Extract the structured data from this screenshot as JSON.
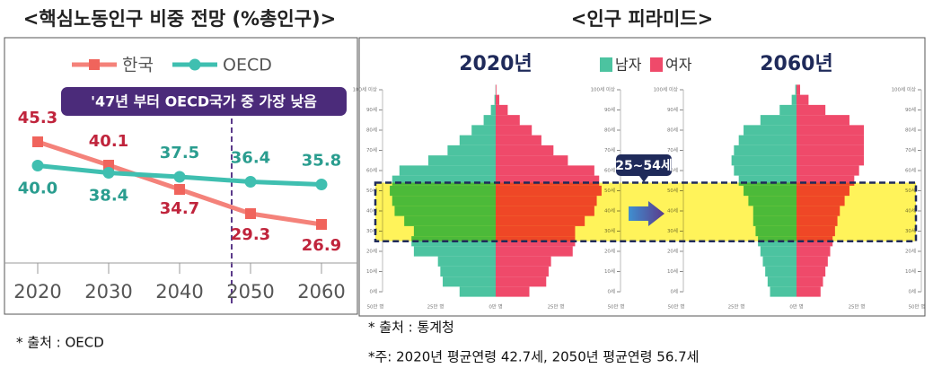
{
  "chart_data": [
    {
      "type": "line",
      "title": "<핵심노동인구 비중 전망 (%총인구)>",
      "annotation": "'47년 부터 OECD국가 중 가장 낮음",
      "categories": [
        "2020",
        "2030",
        "2040",
        "2050",
        "2060"
      ],
      "series": [
        {
          "name": "한국",
          "color": "#f4827a",
          "label_color": "#c0243c",
          "values": [
            45.3,
            40.1,
            34.7,
            29.3,
            26.9
          ],
          "value_labels": [
            "45.3",
            "40.1",
            "34.7",
            "29.3",
            "26.9"
          ]
        },
        {
          "name": "OECD",
          "color": "#3fbfb0",
          "label_color": "#2a9d8f",
          "values": [
            40.0,
            38.4,
            37.5,
            36.4,
            35.8
          ],
          "value_labels": [
            "40.0",
            "38.4",
            "37.5",
            "36.4",
            "35.8"
          ]
        }
      ]
    },
    {
      "type": "pyramid",
      "title": "<인구 피라미드>",
      "series": [
        {
          "name": "남자",
          "color": "#4cc3a0"
        },
        {
          "name": "여자",
          "color": "#ef4a6a"
        }
      ],
      "y": [
        0,
        5,
        10,
        15,
        20,
        25,
        30,
        35,
        40,
        45,
        50,
        55,
        60,
        65,
        70,
        75,
        80,
        85,
        90,
        95,
        100
      ],
      "ylim": [
        0,
        100
      ],
      "yticks": [
        {
          "value": 100,
          "label": "100세 이상"
        },
        {
          "value": 90,
          "label": "90세"
        },
        {
          "value": 80,
          "label": "80세"
        },
        {
          "value": 70,
          "label": "70세"
        },
        {
          "value": 60,
          "label": "60세"
        },
        {
          "value": 50,
          "label": "50세"
        },
        {
          "value": 40,
          "label": "40세"
        },
        {
          "value": 30,
          "label": "30세"
        },
        {
          "value": 20,
          "label": "20세"
        },
        {
          "value": 10,
          "label": "10세"
        },
        {
          "value": 0,
          "label": "0세"
        }
      ],
      "xlim": [
        -50,
        50
      ],
      "xticks": [
        {
          "value": -50,
          "label": "50만 명"
        },
        {
          "value": -25,
          "label": "25만 명"
        },
        {
          "value": 0,
          "label": "0만 명"
        },
        {
          "value": 25,
          "label": "25만 명"
        },
        {
          "value": 50,
          "label": "50만 명"
        }
      ],
      "highlight": {
        "label": "25~54세",
        "range": [
          25,
          54
        ]
      },
      "panels": [
        {
          "title": "2020년",
          "values": [
            [
              15,
              22,
              23,
              24,
              34,
              35,
              34,
              38,
              42,
              43,
              44,
              43,
              40,
              28,
              20,
              15,
              10,
              5,
              2,
              0.5,
              0.1
            ],
            [
              14,
              21,
              22,
              23,
              32,
              33,
              33,
              37,
              41,
              42,
              44,
              43,
              41,
              30,
              24,
              19,
              15,
              10,
              5,
              1.5,
              0.3
            ]
          ]
        },
        {
          "title": "2060년",
          "values": [
            [
              11,
              12,
              13,
              14,
              15,
              16,
              17,
              18,
              18,
              20,
              22,
              24,
              26,
              27,
              26,
              24,
              22,
              15,
              7,
              2,
              0.5
            ],
            [
              10,
              11,
              12,
              13,
              14,
              15,
              16,
              17,
              18,
              20,
              22,
              24,
              26,
              28,
              28,
              28,
              28,
              22,
              12,
              5,
              1.5
            ]
          ]
        }
      ]
    }
  ],
  "notes": [
    "* 출처 : OECD",
    "* 출처 : 통계청",
    "*주: 2020년 평균연령 42.7세, 2050년 평균연령 56.7세"
  ]
}
